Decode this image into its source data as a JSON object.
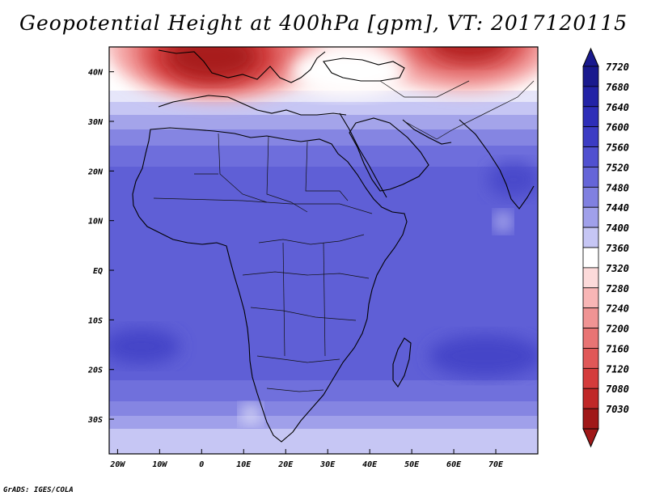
{
  "title": "Geopotential Height at 400hPa [gpm], VT: 2017120115",
  "credit": "GrADS: IGES/COLA",
  "map": {
    "lon_range": [
      -22,
      80
    ],
    "lat_range": [
      -37,
      45
    ],
    "lat_ticks": [
      {
        "value": 40,
        "label": "40N"
      },
      {
        "value": 30,
        "label": "30N"
      },
      {
        "value": 20,
        "label": "20N"
      },
      {
        "value": 10,
        "label": "10N"
      },
      {
        "value": 0,
        "label": "EQ"
      },
      {
        "value": -10,
        "label": "10S"
      },
      {
        "value": -20,
        "label": "20S"
      },
      {
        "value": -30,
        "label": "30S"
      }
    ],
    "lon_ticks": [
      {
        "value": -20,
        "label": "20W"
      },
      {
        "value": -10,
        "label": "10W"
      },
      {
        "value": 0,
        "label": "0"
      },
      {
        "value": 10,
        "label": "10E"
      },
      {
        "value": 20,
        "label": "20E"
      },
      {
        "value": 30,
        "label": "30E"
      },
      {
        "value": 40,
        "label": "40E"
      },
      {
        "value": 50,
        "label": "50E"
      },
      {
        "value": 60,
        "label": "60E"
      },
      {
        "value": 70,
        "label": "70E"
      }
    ]
  },
  "colorbar": {
    "levels": [
      {
        "label": "7720",
        "color": "#1a1a8e"
      },
      {
        "label": "7680",
        "color": "#2323a6"
      },
      {
        "label": "7640",
        "color": "#2e2eb8"
      },
      {
        "label": "7600",
        "color": "#3c3cc4"
      },
      {
        "label": "7560",
        "color": "#5050d0"
      },
      {
        "label": "7520",
        "color": "#6565d8"
      },
      {
        "label": "7480",
        "color": "#8080e0"
      },
      {
        "label": "7440",
        "color": "#a0a0ea"
      },
      {
        "label": "7400",
        "color": "#c6c6f4"
      },
      {
        "label": "7360",
        "color": "#ffffff"
      },
      {
        "label": "7320",
        "color": "#fcdada"
      },
      {
        "label": "7280",
        "color": "#f8b6b6"
      },
      {
        "label": "7240",
        "color": "#f09494"
      },
      {
        "label": "7200",
        "color": "#e87474"
      },
      {
        "label": "7160",
        "color": "#e05858"
      },
      {
        "label": "7120",
        "color": "#d43c3c"
      },
      {
        "label": "7080",
        "color": "#c02828"
      },
      {
        "label": "7030",
        "color": "#a01818"
      }
    ]
  }
}
